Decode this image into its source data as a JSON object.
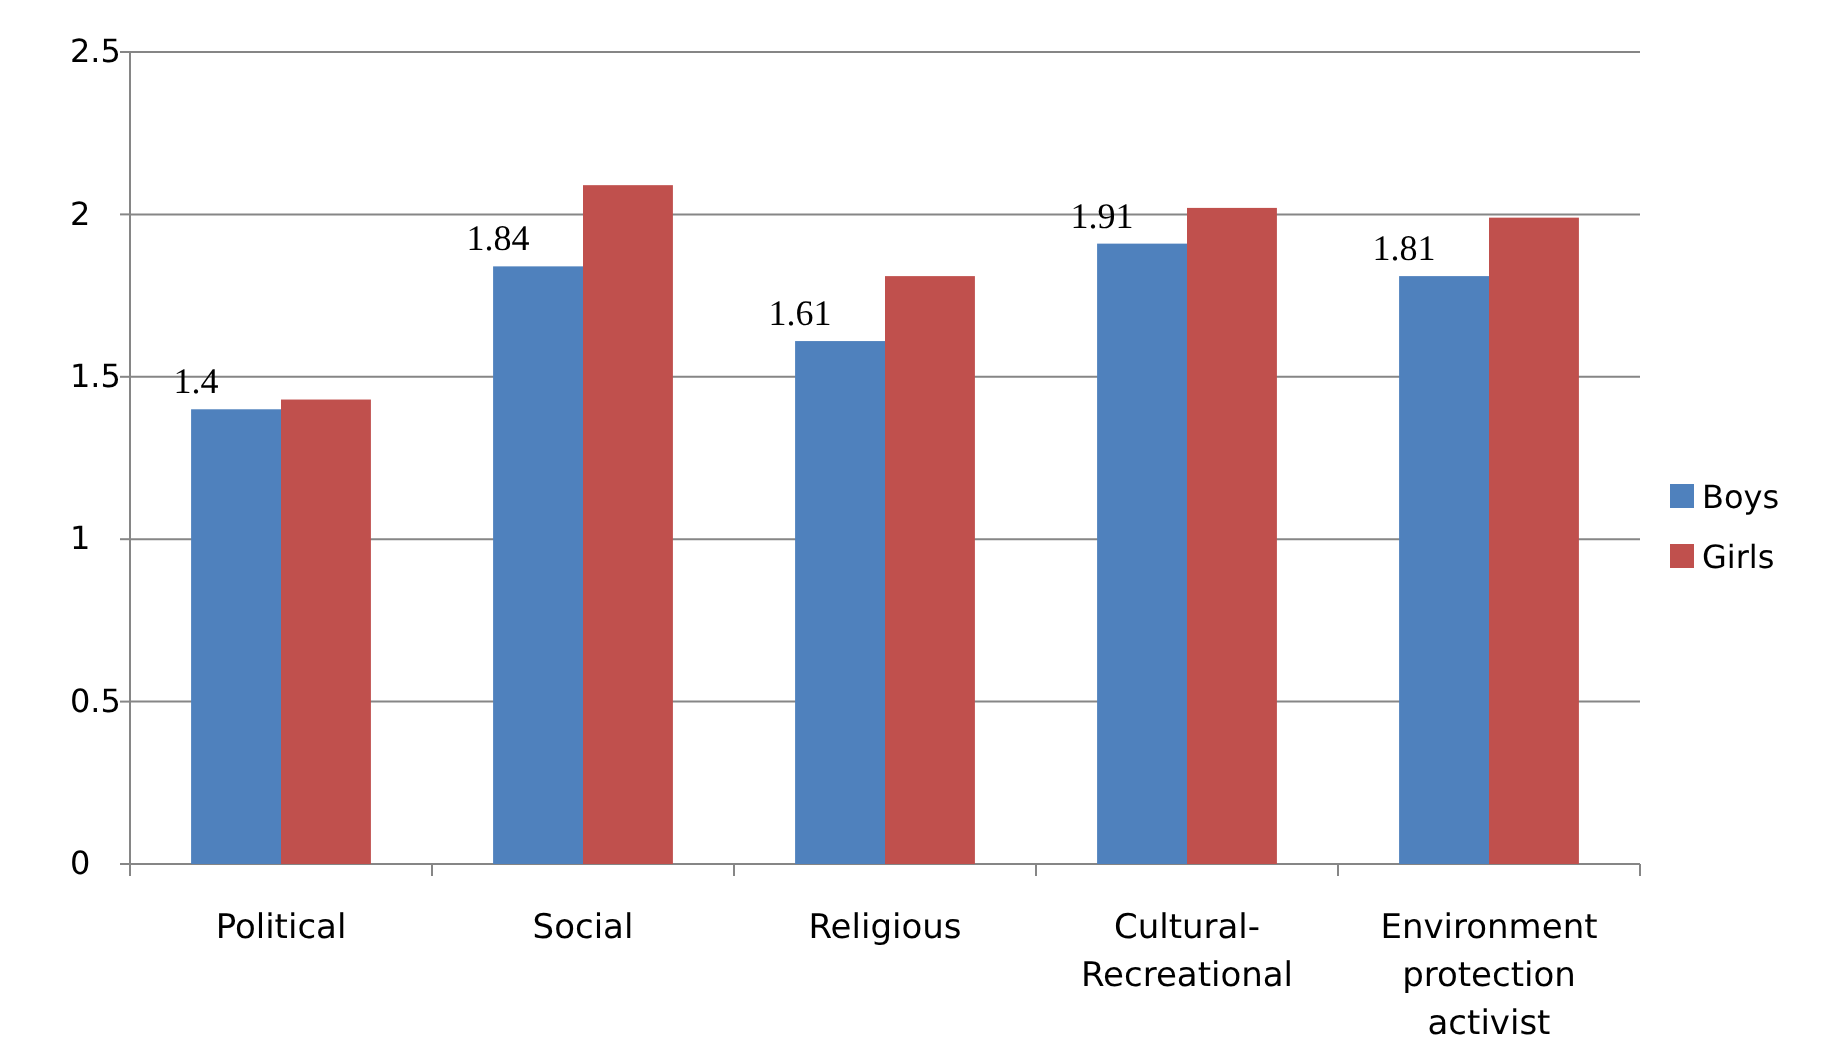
{
  "chart_data": {
    "type": "bar",
    "categories": [
      "Political",
      "Social",
      "Religious",
      "Cultural-Recreational",
      "Environment protection activist"
    ],
    "series": [
      {
        "name": "Boys",
        "color": "#4f81bd",
        "values": [
          1.4,
          1.84,
          1.61,
          1.91,
          1.81
        ],
        "value_labels": [
          "1.4",
          "1.84",
          "1.61",
          "1.91",
          "1.81"
        ]
      },
      {
        "name": "Girls",
        "color": "#c0504d",
        "values": [
          1.43,
          2.09,
          1.81,
          2.02,
          1.99
        ]
      }
    ],
    "ylim": [
      0,
      2.5
    ],
    "yticks": [
      0,
      0.5,
      1,
      1.5,
      2,
      2.5
    ],
    "grid": "y",
    "legend": "right"
  }
}
